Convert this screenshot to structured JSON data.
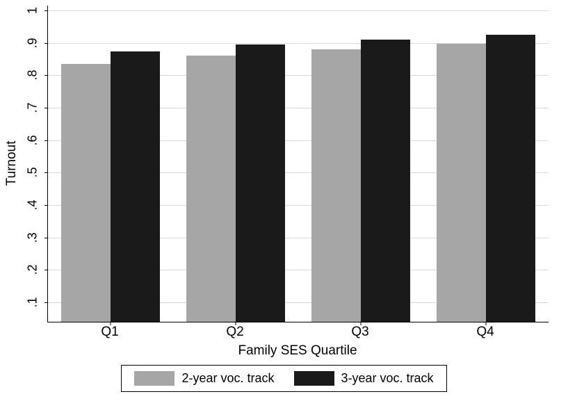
{
  "chart_data": {
    "type": "bar",
    "title": "",
    "categories": [
      "Q1",
      "Q2",
      "Q3",
      "Q4"
    ],
    "series": [
      {
        "name": "2-year voc. track",
        "color": "#a6a6a6",
        "values": [
          0.835,
          0.861,
          0.879,
          0.897
        ]
      },
      {
        "name": "3-year voc. track",
        "color": "#1a1a1a",
        "values": [
          0.874,
          0.894,
          0.91,
          0.925
        ]
      }
    ],
    "xlabel": "Family SES Quartile",
    "ylabel": "Turnout",
    "yticks": [
      0.1,
      0.2,
      0.3,
      0.4,
      0.5,
      0.6,
      0.7,
      0.8,
      0.9,
      1
    ],
    "ytick_labels": [
      ".1",
      ".2",
      ".3",
      ".4",
      ".5",
      ".6",
      ".7",
      ".8",
      ".9",
      "1"
    ],
    "ylim": [
      0.04,
      1.015
    ],
    "grid": true,
    "gridline_color": "#d9d9d9",
    "axis_color": "#000000",
    "legend_position": "bottom"
  }
}
